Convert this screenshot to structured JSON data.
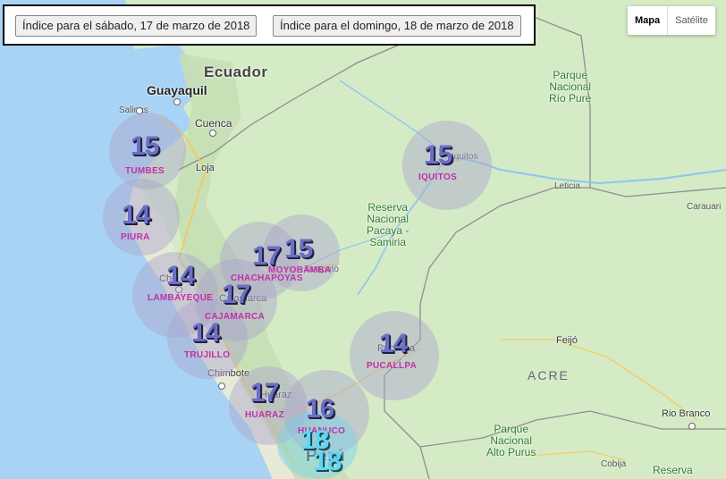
{
  "controls": {
    "saturday_button": "Índice para el sábado, 17 de marzo de 2018",
    "sunday_button": "Índice para el domingo, 18 de marzo de 2018"
  },
  "map_type": {
    "map": "Mapa",
    "satellite": "Satélite",
    "selected": "Mapa"
  },
  "labels": {
    "ecuador": "Ecuador",
    "peru": "Perú",
    "guayaquil": "Guayaquil",
    "salinas": "Salinas",
    "cuenca": "Cuenca",
    "loja": "Loja",
    "chiclayo": "Chic",
    "cajamarca_city": "Cajamarca",
    "tarapoto": "Tarapoto",
    "chimbote": "Chimbote",
    "huaraz_city": "Huaraz",
    "pucallpa_city": "Pucallpa",
    "iquitos_city": "Iquitos",
    "leticia": "Leticia",
    "caraurari": "Carauari",
    "feijo": "Feijó",
    "rio_branco": "Rio Branco",
    "cobija": "Cobija",
    "acre": "ACRE",
    "pacaya_samiria": "Reserva\nNacional\nPacaya -\nSamiria",
    "rio_pure": "Parque\nNacional\nRío Puré",
    "alto_purus": "Parque\nNacional\nAlto Purus",
    "reserva_bottom": "Reserva"
  },
  "uv_markers": [
    {
      "name": "TUMBES",
      "value": "15",
      "color": "#6b6fc7"
    },
    {
      "name": "PIURA",
      "value": "14",
      "color": "#6b6fc7"
    },
    {
      "name": "CHACHAPOYAS",
      "value": "17",
      "color": "#6b6fc7"
    },
    {
      "name": "MOYOBAMBA",
      "value": "15",
      "color": "#6b6fc7"
    },
    {
      "name": "LAMBAYEQUE",
      "value": "14",
      "color": "#6b6fc7"
    },
    {
      "name": "CAJAMARCA",
      "value": "17",
      "color": "#6b6fc7"
    },
    {
      "name": "TRUJILLO",
      "value": "14",
      "color": "#6b6fc7"
    },
    {
      "name": "HUARAZ",
      "value": "17",
      "color": "#6b6fc7"
    },
    {
      "name": "HUANUCO",
      "value": "16",
      "color": "#6b6fc7"
    },
    {
      "name": "IQUITOS",
      "value": "15",
      "color": "#6b6fc7"
    },
    {
      "name": "PUCALLPA",
      "value": "14",
      "color": "#6b6fc7"
    },
    {
      "name": "",
      "value": "18",
      "color": "#5fd8f5"
    },
    {
      "name": "",
      "value": "18",
      "color": "#5fd8f5"
    }
  ]
}
